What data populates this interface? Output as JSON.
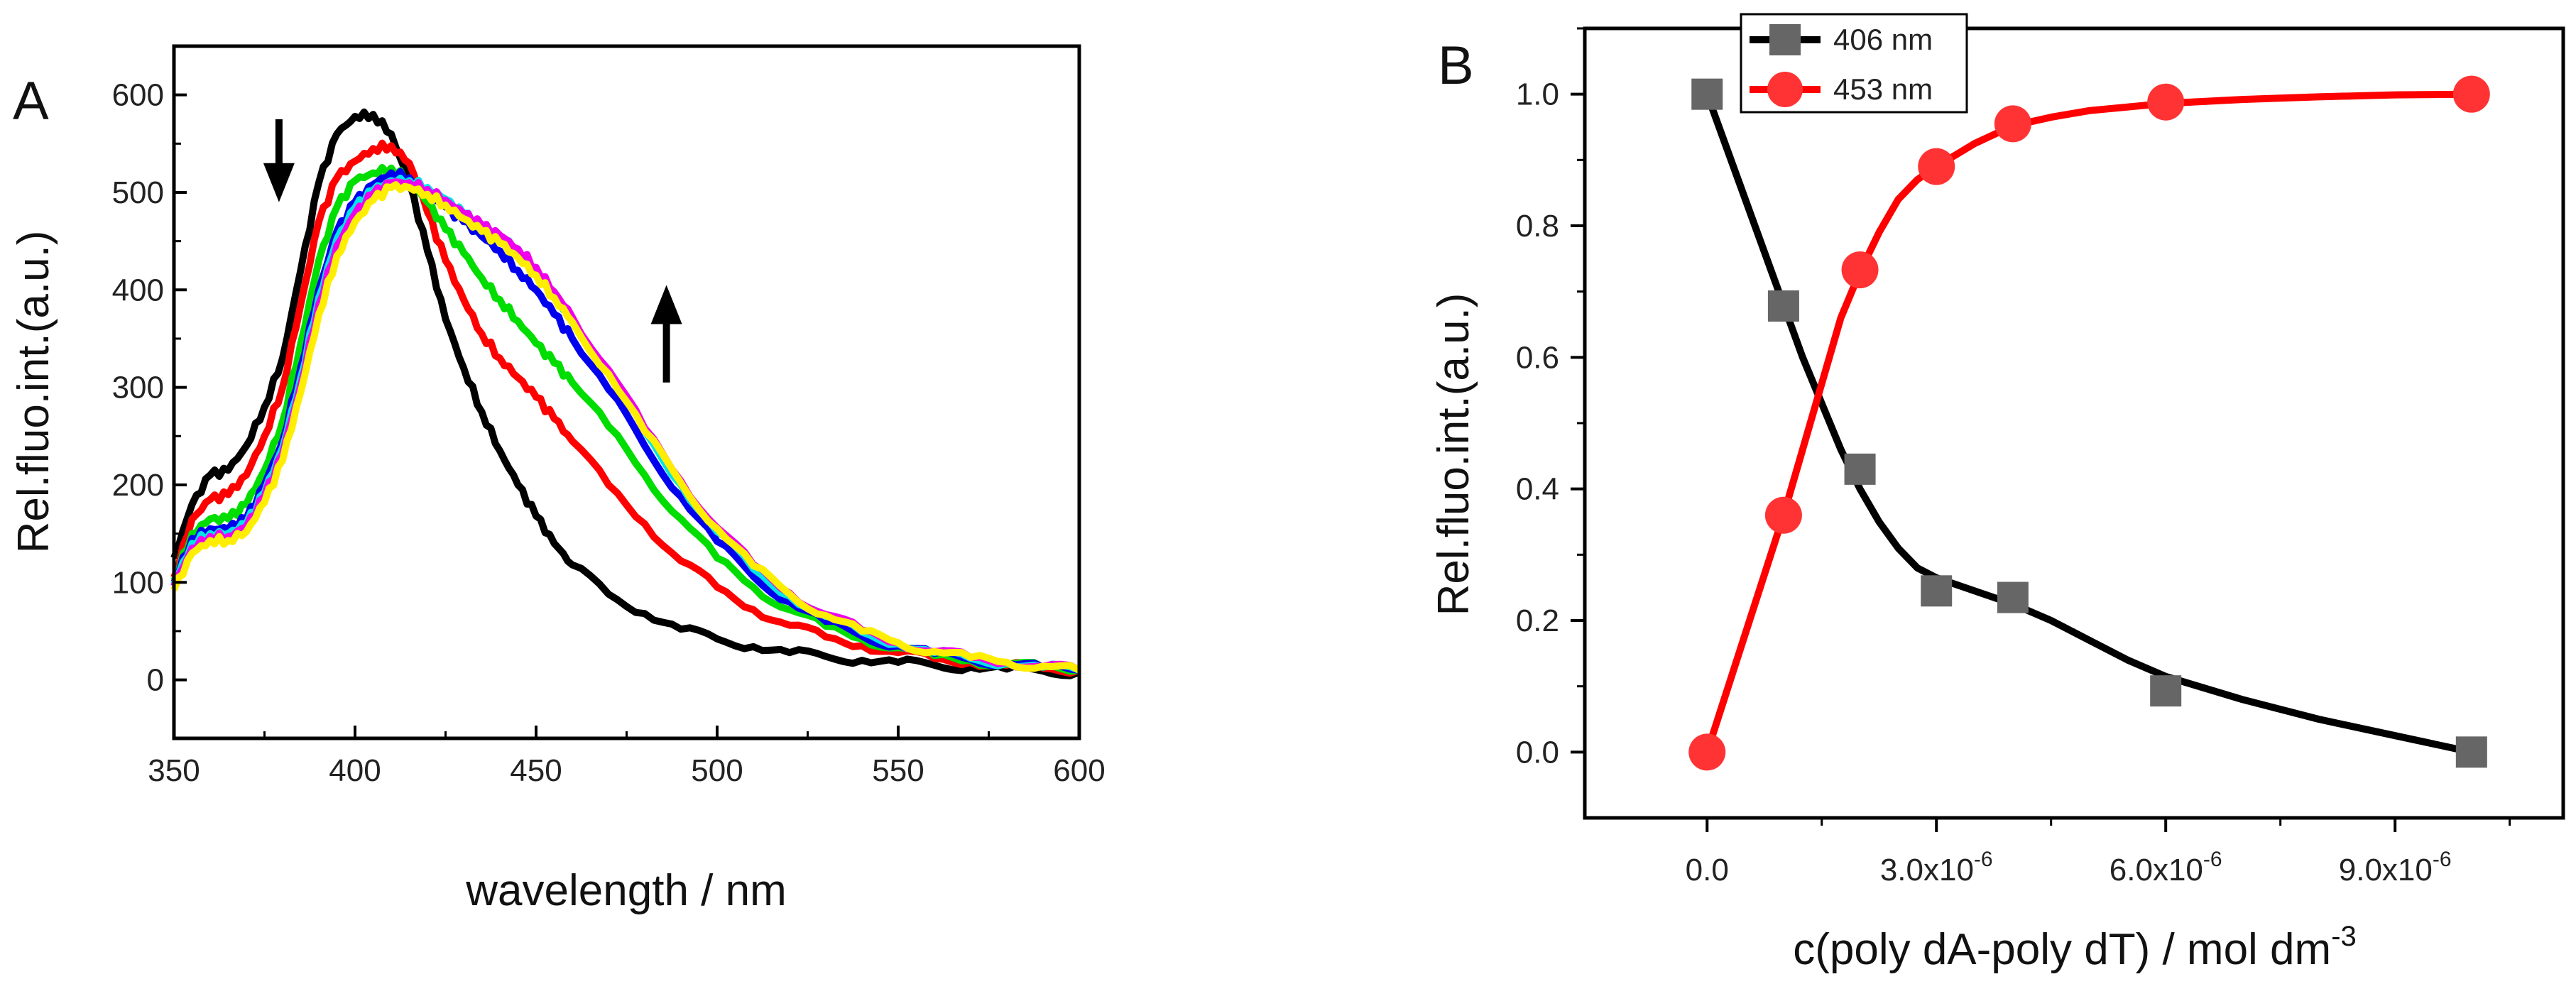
{
  "chart_data": [
    {
      "panel_label": "A",
      "type": "line",
      "title": "",
      "xlabel": "wavelength / nm",
      "ylabel": "Rel.fluo.int.(a.u.)",
      "xlim": [
        350,
        600
      ],
      "ylim": [
        -60,
        650
      ],
      "xticks": [
        350,
        400,
        450,
        500,
        550,
        600
      ],
      "yticks": [
        0,
        100,
        200,
        300,
        400,
        500,
        600
      ],
      "grid": false,
      "annotations": [
        {
          "name": "down-arrow",
          "direction": "down",
          "x": 379,
          "y_from": 575,
          "y_to": 490
        },
        {
          "name": "up-arrow",
          "direction": "up",
          "x": 486,
          "y_from": 305,
          "y_to": 405
        }
      ],
      "series": [
        {
          "color": "#000000",
          "x": [
            350,
            355,
            360,
            365,
            370,
            375,
            380,
            385,
            390,
            395,
            400,
            405,
            410,
            415,
            420,
            425,
            430,
            435,
            440,
            445,
            450,
            455,
            460,
            470,
            480,
            490,
            500,
            510,
            520,
            530,
            540,
            550,
            560,
            570,
            580,
            590,
            600
          ],
          "y": [
            125,
            180,
            210,
            215,
            240,
            280,
            330,
            420,
            510,
            560,
            578,
            580,
            560,
            510,
            440,
            370,
            320,
            275,
            235,
            200,
            168,
            140,
            118,
            88,
            68,
            52,
            42,
            34,
            28,
            24,
            20,
            18,
            15,
            13,
            11,
            9,
            8
          ]
        },
        {
          "color": "#ff0000",
          "x": [
            350,
            355,
            360,
            365,
            370,
            375,
            380,
            385,
            390,
            395,
            400,
            405,
            410,
            415,
            420,
            425,
            430,
            435,
            440,
            445,
            450,
            455,
            460,
            470,
            480,
            490,
            500,
            510,
            520,
            530,
            540,
            550,
            560,
            570,
            580,
            590,
            600
          ],
          "y": [
            105,
            165,
            185,
            190,
            210,
            250,
            300,
            385,
            470,
            515,
            532,
            545,
            548,
            530,
            480,
            430,
            390,
            355,
            330,
            310,
            290,
            268,
            245,
            200,
            160,
            122,
            95,
            72,
            56,
            44,
            35,
            28,
            22,
            18,
            15,
            12,
            10
          ]
        },
        {
          "color": "#00dd00",
          "x": [
            350,
            355,
            360,
            365,
            370,
            375,
            380,
            385,
            390,
            395,
            400,
            405,
            410,
            415,
            420,
            425,
            430,
            435,
            440,
            445,
            450,
            455,
            460,
            470,
            480,
            490,
            500,
            510,
            520,
            530,
            540,
            550,
            560,
            570,
            580,
            590,
            600
          ],
          "y": [
            102,
            150,
            165,
            165,
            180,
            215,
            265,
            345,
            430,
            485,
            512,
            520,
            525,
            512,
            490,
            462,
            438,
            412,
            390,
            368,
            345,
            325,
            305,
            260,
            210,
            165,
            125,
            95,
            72,
            55,
            42,
            33,
            25,
            20,
            16,
            13,
            10
          ]
        },
        {
          "color": "#0000ee",
          "x": [
            350,
            355,
            360,
            365,
            370,
            375,
            380,
            385,
            390,
            395,
            400,
            405,
            410,
            415,
            420,
            425,
            430,
            435,
            440,
            445,
            450,
            455,
            460,
            470,
            480,
            490,
            500,
            510,
            520,
            530,
            540,
            550,
            560,
            570,
            580,
            590,
            600
          ],
          "y": [
            100,
            145,
            155,
            155,
            165,
            200,
            245,
            320,
            400,
            460,
            490,
            508,
            520,
            515,
            500,
            485,
            470,
            455,
            440,
            420,
            400,
            375,
            350,
            298,
            240,
            188,
            142,
            106,
            80,
            60,
            45,
            35,
            27,
            21,
            17,
            13,
            10
          ]
        },
        {
          "color": "#00e5e5",
          "x": [
            350,
            355,
            360,
            365,
            370,
            375,
            380,
            385,
            390,
            395,
            400,
            405,
            410,
            415,
            420,
            425,
            430,
            435,
            440,
            445,
            450,
            455,
            460,
            470,
            480,
            490,
            500,
            510,
            520,
            530,
            540,
            550,
            560,
            570,
            580,
            590,
            600
          ],
          "y": [
            98,
            140,
            150,
            150,
            160,
            192,
            238,
            310,
            392,
            452,
            484,
            502,
            512,
            512,
            505,
            493,
            478,
            465,
            455,
            440,
            420,
            395,
            370,
            315,
            255,
            200,
            152,
            114,
            86,
            65,
            49,
            37,
            28,
            22,
            17,
            13,
            10
          ]
        },
        {
          "color": "#ee00ee",
          "x": [
            350,
            355,
            360,
            365,
            370,
            375,
            380,
            385,
            390,
            395,
            400,
            405,
            410,
            415,
            420,
            425,
            430,
            435,
            440,
            445,
            450,
            455,
            460,
            470,
            480,
            490,
            500,
            510,
            520,
            530,
            540,
            550,
            560,
            570,
            580,
            590,
            600
          ],
          "y": [
            96,
            135,
            147,
            147,
            157,
            188,
            232,
            302,
            385,
            445,
            478,
            498,
            510,
            510,
            503,
            492,
            478,
            466,
            456,
            442,
            423,
            398,
            372,
            318,
            258,
            204,
            156,
            118,
            89,
            67,
            51,
            38,
            29,
            23,
            18,
            14,
            10
          ]
        },
        {
          "color": "#ffee00",
          "x": [
            350,
            355,
            360,
            365,
            370,
            375,
            380,
            385,
            390,
            395,
            400,
            405,
            410,
            415,
            420,
            425,
            430,
            435,
            440,
            445,
            450,
            455,
            460,
            470,
            480,
            490,
            500,
            510,
            520,
            530,
            540,
            550,
            560,
            570,
            580,
            590,
            600
          ],
          "y": [
            92,
            130,
            143,
            143,
            152,
            182,
            225,
            295,
            375,
            435,
            470,
            492,
            505,
            505,
            498,
            487,
            473,
            460,
            448,
            433,
            415,
            392,
            367,
            314,
            255,
            202,
            155,
            117,
            88,
            66,
            50,
            38,
            29,
            23,
            18,
            14,
            10
          ]
        }
      ]
    },
    {
      "panel_label": "B",
      "type": "scatter",
      "title": "",
      "xlabel_main": "c(poly dA-poly dT) / mol dm",
      "xlabel_sup": "-3",
      "ylabel": "Rel.fluo.int.(a.u.)",
      "xlim": [
        -1.6e-06,
        1.12e-05
      ],
      "ylim": [
        -0.1,
        1.1
      ],
      "xticks": [
        {
          "value": 0,
          "label": "0.0",
          "sup": ""
        },
        {
          "value": 3e-06,
          "label": "3.0x10",
          "sup": "-6"
        },
        {
          "value": 6e-06,
          "label": "6.0x10",
          "sup": "-6"
        },
        {
          "value": 9e-06,
          "label": "9.0x10",
          "sup": "-6"
        }
      ],
      "yticks": [
        {
          "value": 0,
          "label": "0.0"
        },
        {
          "value": 0.2,
          "label": "0.2"
        },
        {
          "value": 0.4,
          "label": "0.4"
        },
        {
          "value": 0.6,
          "label": "0.6"
        },
        {
          "value": 0.8,
          "label": "0.8"
        },
        {
          "value": 1.0,
          "label": "1.0"
        }
      ],
      "grid": false,
      "legend_position": "top-left",
      "series": [
        {
          "name": "406 nm",
          "color": "#000000",
          "marker": "square",
          "marker_color": "#666666",
          "x": [
            0,
            1e-06,
            2e-06,
            3e-06,
            4e-06,
            6e-06,
            1e-05
          ],
          "y": [
            1.0,
            0.678,
            0.43,
            0.245,
            0.235,
            0.093,
            0.0
          ],
          "fit_x": [
            0,
            2.5e-07,
            5e-07,
            7.5e-07,
            1e-06,
            1.25e-06,
            1.5e-06,
            1.75e-06,
            2e-06,
            2.25e-06,
            2.5e-06,
            2.75e-06,
            3e-06,
            3.5e-06,
            4e-06,
            4.5e-06,
            5e-06,
            5.5e-06,
            6e-06,
            7e-06,
            8e-06,
            9e-06,
            1e-05
          ],
          "fit_y": [
            1.0,
            0.92,
            0.84,
            0.76,
            0.68,
            0.6,
            0.53,
            0.46,
            0.4,
            0.35,
            0.31,
            0.28,
            0.265,
            0.245,
            0.225,
            0.2,
            0.17,
            0.14,
            0.115,
            0.08,
            0.05,
            0.025,
            0.0
          ]
        },
        {
          "name": "453 nm",
          "color": "#ff0000",
          "marker": "circle",
          "marker_color": "#ff3333",
          "x": [
            0,
            1e-06,
            2e-06,
            3e-06,
            4e-06,
            6e-06,
            1e-05
          ],
          "y": [
            0.0,
            0.36,
            0.733,
            0.89,
            0.955,
            0.988,
            1.0
          ],
          "fit_x": [
            0,
            2.5e-07,
            5e-07,
            7.5e-07,
            1e-06,
            1.25e-06,
            1.5e-06,
            1.75e-06,
            2e-06,
            2.25e-06,
            2.5e-06,
            2.75e-06,
            3e-06,
            3.5e-06,
            4e-06,
            4.5e-06,
            5e-06,
            6e-06,
            7e-06,
            8e-06,
            9e-06,
            1e-05
          ],
          "fit_y": [
            0.0,
            0.09,
            0.18,
            0.27,
            0.36,
            0.46,
            0.56,
            0.66,
            0.73,
            0.79,
            0.84,
            0.87,
            0.89,
            0.925,
            0.952,
            0.965,
            0.975,
            0.986,
            0.992,
            0.996,
            0.999,
            1.0
          ]
        }
      ]
    }
  ]
}
